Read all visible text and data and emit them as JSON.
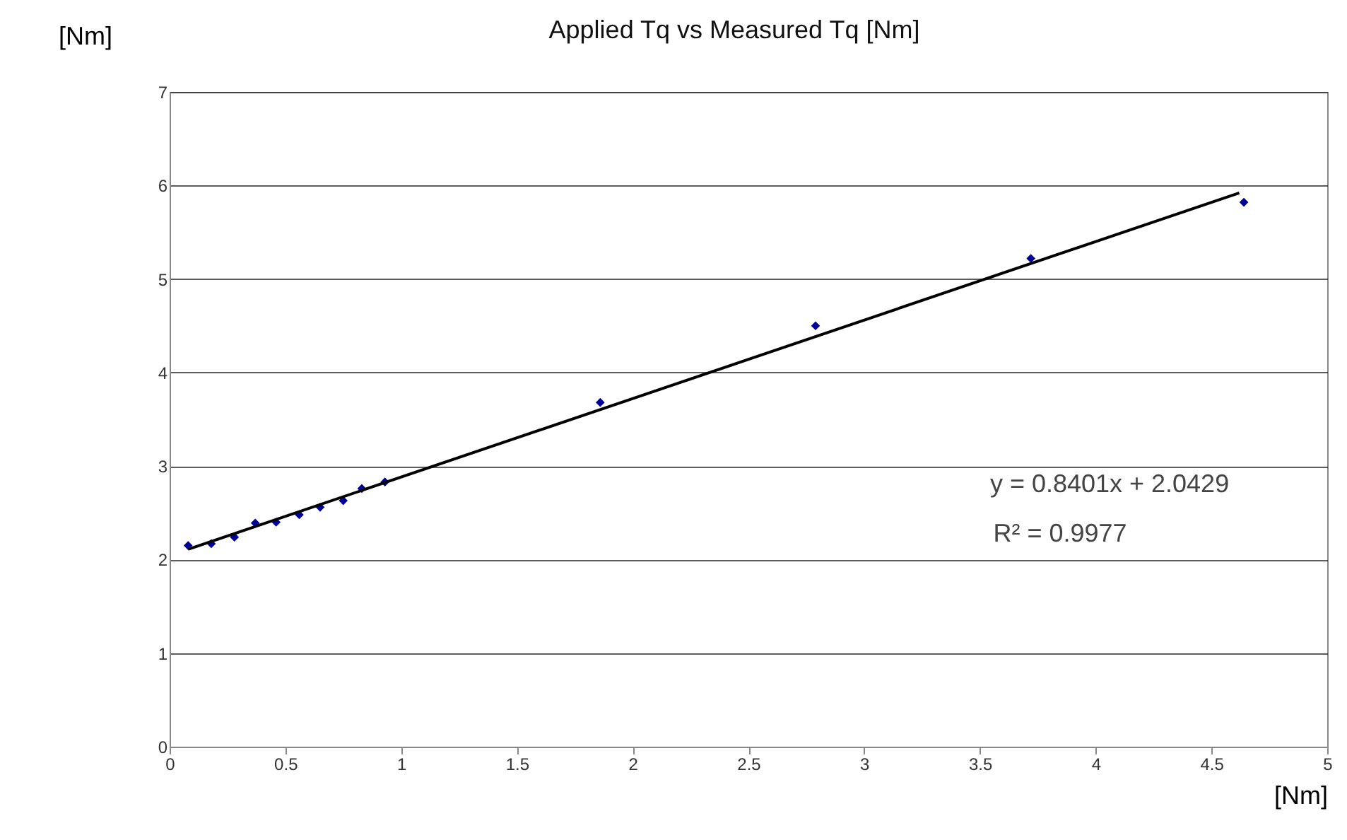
{
  "chart_data": {
    "type": "scatter",
    "title": "Applied Tq vs Measured Tq [Nm]",
    "xlabel": "[Nm]",
    "ylabel": "[Nm]",
    "xlim": [
      0,
      5
    ],
    "xticks": [
      0,
      0.5,
      1,
      1.5,
      2,
      2.5,
      3,
      3.5,
      4,
      4.5,
      5
    ],
    "ylim": [
      0,
      7
    ],
    "yticks": [
      0,
      1,
      2,
      3,
      4,
      5,
      6,
      7
    ],
    "grid": "y",
    "series": [
      {
        "color": "#000099",
        "marker": "diamond",
        "x": [
          0.08,
          0.18,
          0.28,
          0.37,
          0.46,
          0.56,
          0.65,
          0.75,
          0.83,
          0.93,
          1.86,
          2.79,
          3.72,
          4.64
        ],
        "values": [
          2.15,
          2.17,
          2.24,
          2.39,
          2.4,
          2.48,
          2.56,
          2.63,
          2.76,
          2.83,
          3.68,
          4.5,
          5.22,
          5.82
        ]
      },
      {
        "type": "line",
        "color": "#000000",
        "marker": "none",
        "x": [
          0.08,
          4.62
        ],
        "values": [
          2.11,
          5.92
        ]
      }
    ],
    "annotations": [
      "y = 0.8401x + 2.0429",
      "R² = 0.9977"
    ]
  }
}
